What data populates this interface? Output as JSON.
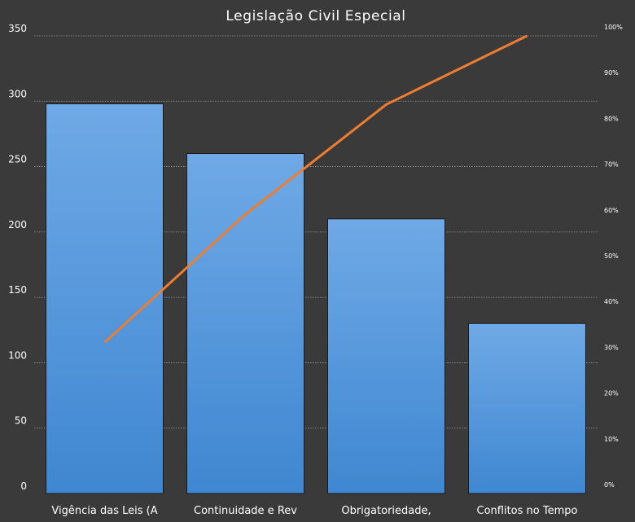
{
  "chart_data": {
    "type": "bar",
    "title": "Legislação  Civil Especial",
    "categories": [
      "Vigência das Leis (A",
      "Continuidade  e Rev",
      "Obrigatoriedade,",
      "Conflitos no Tempo"
    ],
    "series": [
      {
        "type": "bar",
        "values": [
          298,
          260,
          210,
          130
        ],
        "color": "#5a9be0"
      },
      {
        "type": "line",
        "axis": "right",
        "values": [
          33,
          61,
          85,
          100
        ],
        "color": "#ed7d31"
      }
    ],
    "y_left": {
      "ylim": [
        0,
        350
      ],
      "ticks": [
        "0",
        "50",
        "100",
        "150",
        "200",
        "250",
        "300",
        "350"
      ]
    },
    "y_right": {
      "ylim": [
        0,
        100
      ],
      "unit": "%",
      "ticks": [
        "0%",
        "10%",
        "20%",
        "30%",
        "40%",
        "50%",
        "60%",
        "70%",
        "80%",
        "90%",
        "100%"
      ]
    },
    "grid": true,
    "legend": "none"
  }
}
